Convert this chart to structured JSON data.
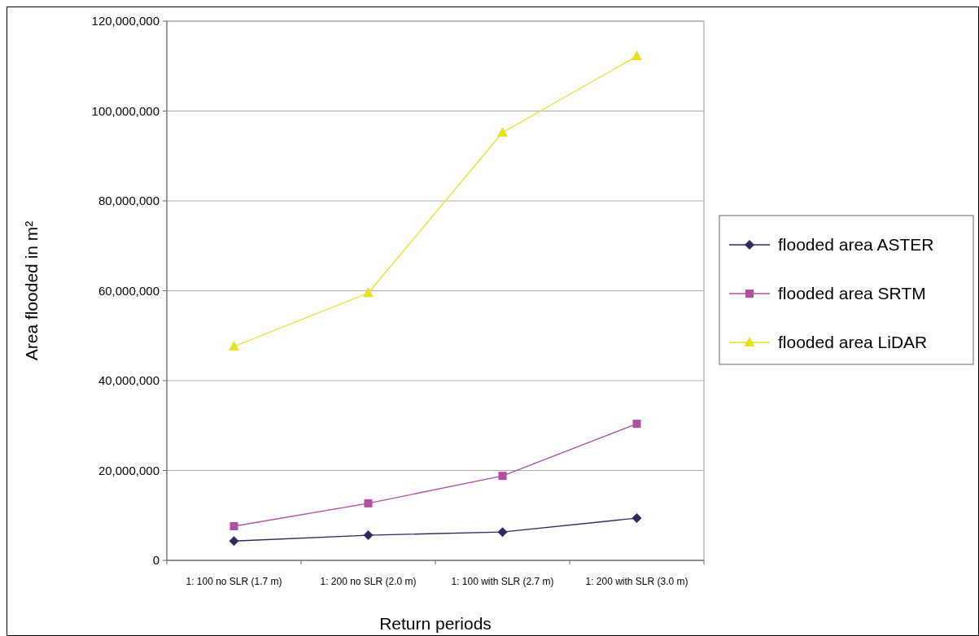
{
  "chart_data": {
    "type": "line",
    "xlabel": "Return periods",
    "ylabel": "Area flooded in m²",
    "categories": [
      "1: 100 no SLR (1.7 m)",
      "1: 200 no SLR (2.0 m)",
      "1: 100 with SLR (2.7 m)",
      "1: 200 with SLR (3.0 m)"
    ],
    "series": [
      {
        "name": "flooded area ASTER",
        "color": "#2e2a5e",
        "marker": "diamond",
        "values": [
          4300000,
          5600000,
          6300000,
          9400000
        ]
      },
      {
        "name": "flooded area SRTM",
        "color": "#b050a0",
        "marker": "square",
        "values": [
          7600000,
          12700000,
          18800000,
          30400000
        ]
      },
      {
        "name": "flooded area LiDAR",
        "color": "#e8e020",
        "marker": "triangle",
        "values": [
          47600000,
          59500000,
          95200000,
          112200000
        ]
      }
    ],
    "ylim": [
      0,
      120000000
    ],
    "yticks": [
      {
        "value": 0,
        "label": "0"
      },
      {
        "value": 20000000,
        "label": "20,000,000"
      },
      {
        "value": 40000000,
        "label": "40,000,000"
      },
      {
        "value": 60000000,
        "label": "60,000,000"
      },
      {
        "value": 80000000,
        "label": "80,000,000"
      },
      {
        "value": 100000000,
        "label": "100,000,000"
      },
      {
        "value": 120000000,
        "label": "120,000,000"
      }
    ],
    "grid": "y",
    "legend": "right"
  }
}
